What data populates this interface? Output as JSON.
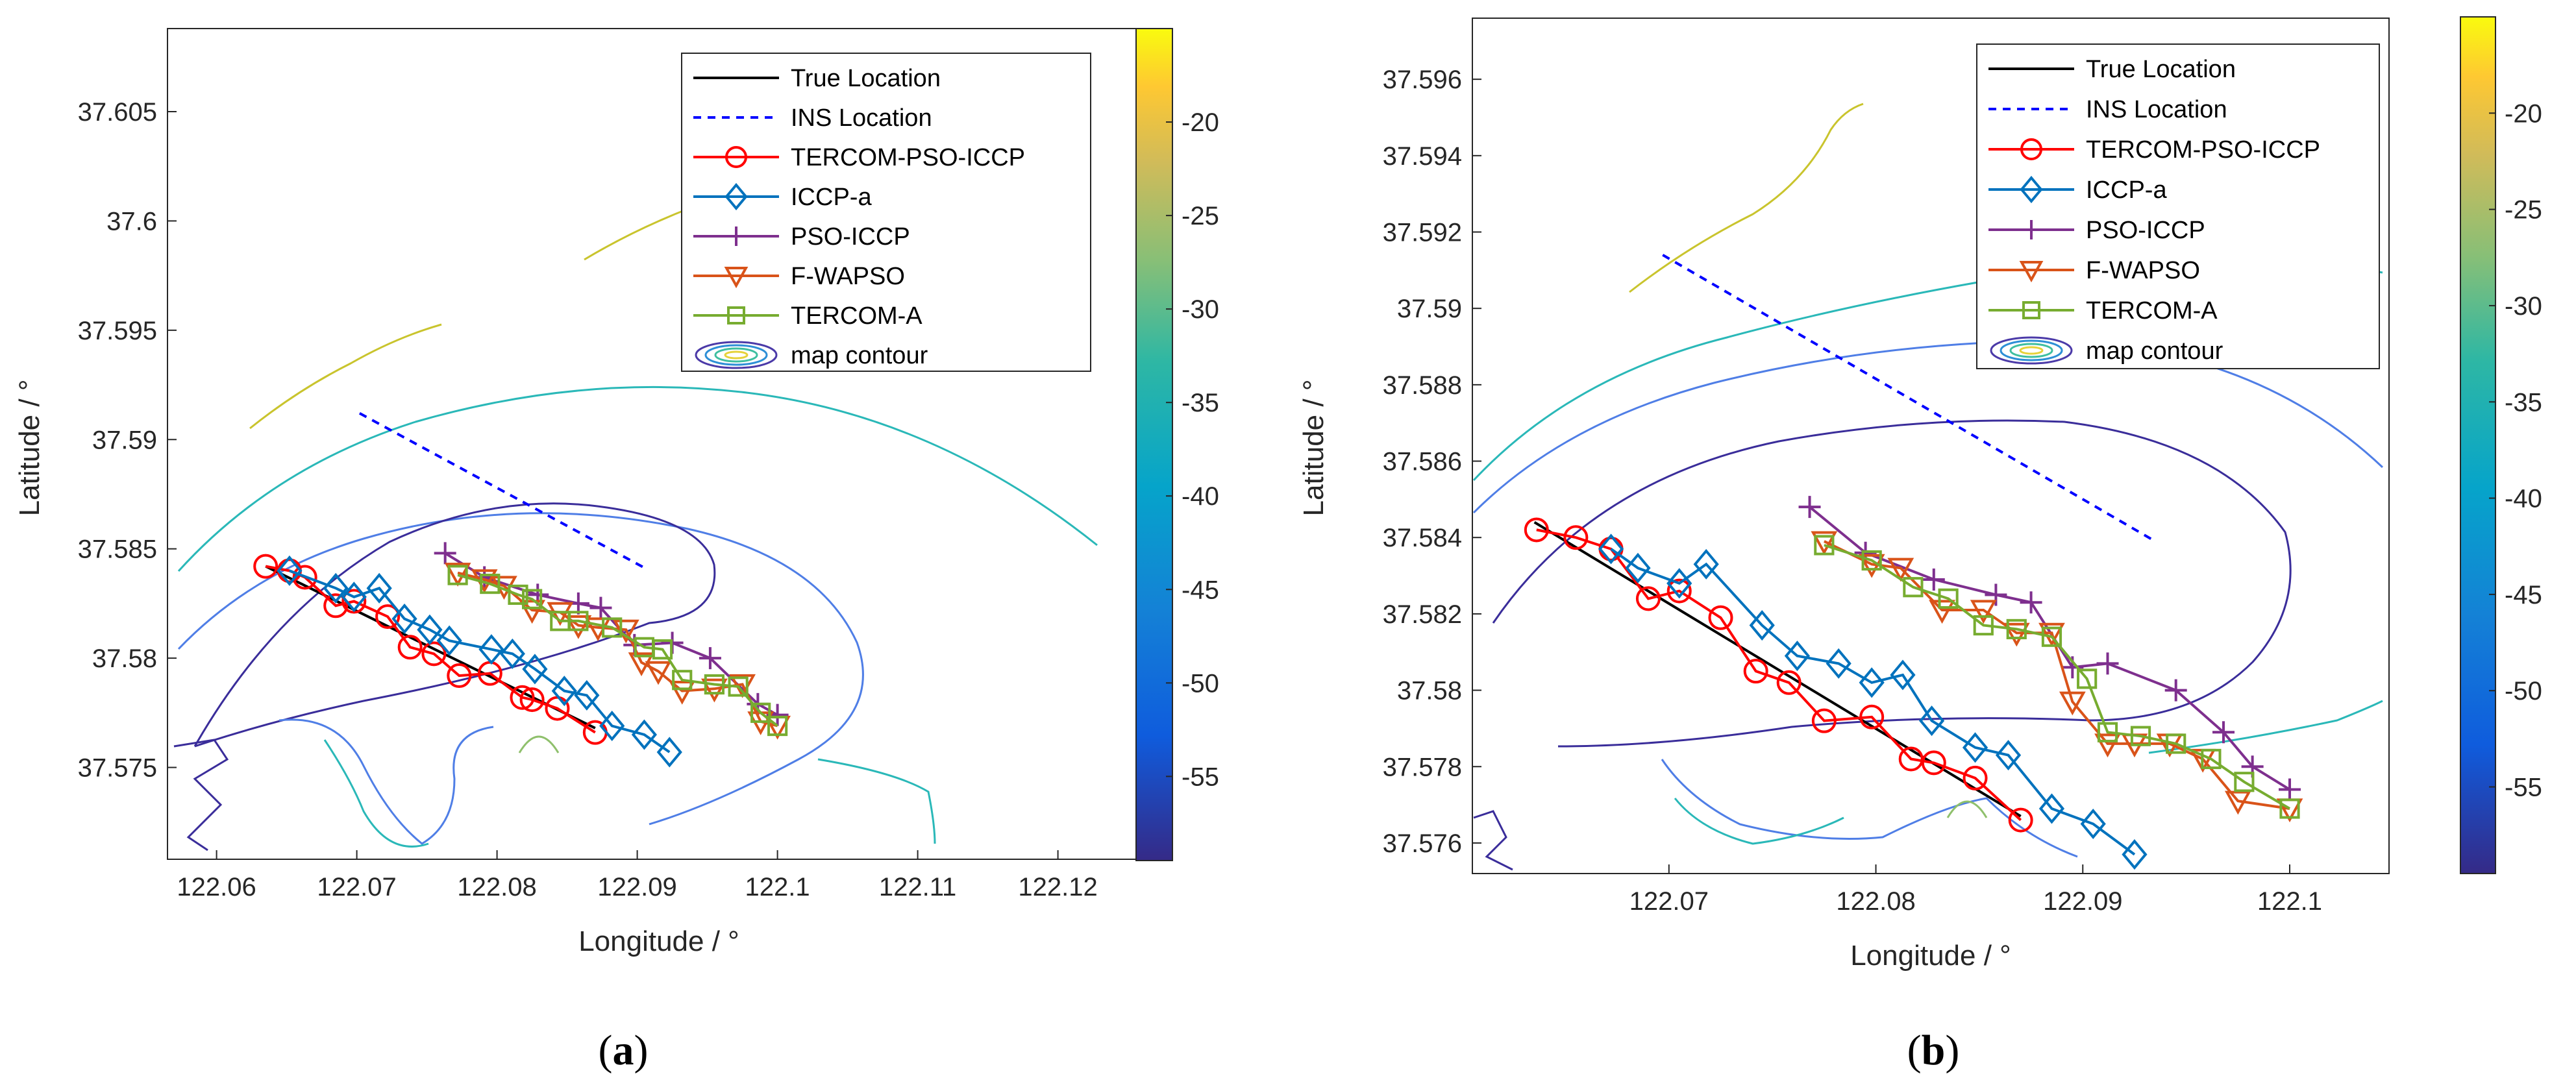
{
  "chart_data": [
    {
      "type": "line",
      "panel_label": "(a)",
      "panel_letter": "a",
      "xlabel": "Longitude / °",
      "ylabel": "Latitude / °",
      "xlim": [
        122.0565,
        122.1265
      ],
      "ylim": [
        37.5708,
        37.6088
      ],
      "xticks": [
        122.06,
        122.07,
        122.08,
        122.09,
        122.1,
        122.11,
        122.12
      ],
      "xtick_labels": [
        "122.06",
        "122.07",
        "122.08",
        "122.09",
        "122.1",
        "122.11",
        "122.12"
      ],
      "yticks": [
        37.575,
        37.58,
        37.585,
        37.59,
        37.595,
        37.6,
        37.605
      ],
      "ytick_labels": [
        "37.575",
        "37.58",
        "37.585",
        "37.59",
        "37.595",
        "37.6",
        "37.605"
      ],
      "colorbar": {
        "range": [
          -59.5,
          -15
        ],
        "ticks": [
          -20,
          -25,
          -30,
          -35,
          -40,
          -45,
          -50,
          -55
        ],
        "tick_labels": [
          "-20",
          "-25",
          "-30",
          "-35",
          "-40",
          "-45",
          "-50",
          "-55"
        ]
      },
      "legend": [
        "True Location",
        "INS Location",
        "TERCOM-PSO-ICCP",
        "ICCP-a",
        "PSO-ICCP",
        "F-WAPSO",
        "TERCOM-A",
        "map contour"
      ],
      "series": [
        {
          "name": "True Location",
          "color": "#000000",
          "dash": "",
          "marker": "none",
          "x": [
            122.0635,
            122.087
          ],
          "y": [
            37.5842,
            37.5768
          ]
        },
        {
          "name": "INS Location",
          "color": "#0000ff",
          "dash": "12,10",
          "marker": "none",
          "x": [
            122.0702,
            122.0906
          ],
          "y": [
            37.5912,
            37.5841
          ]
        },
        {
          "name": "TERCOM-PSO-ICCP",
          "color": "#ff0000",
          "dash": "",
          "marker": "circle",
          "x": [
            122.0635,
            122.0652,
            122.0663,
            122.0685,
            122.0698,
            122.0722,
            122.0738,
            122.0755,
            122.0773,
            122.0795,
            122.0818,
            122.0825,
            122.0843,
            122.087
          ],
          "y": [
            37.5842,
            37.584,
            37.5837,
            37.5824,
            37.5826,
            37.5819,
            37.5805,
            37.5802,
            37.5792,
            37.5793,
            37.5782,
            37.5781,
            37.5777,
            37.5766
          ]
        },
        {
          "name": "ICCP-a",
          "color": "#0072bd",
          "dash": "",
          "marker": "diamond",
          "x": [
            122.0652,
            122.0685,
            122.0698,
            122.0716,
            122.0734,
            122.0752,
            122.0766,
            122.0796,
            122.0811,
            122.0827,
            122.0848,
            122.0864,
            122.0882,
            122.0905,
            122.0923
          ],
          "y": [
            37.584,
            37.5832,
            37.5828,
            37.5832,
            37.5818,
            37.5813,
            37.5808,
            37.5804,
            37.5802,
            37.5795,
            37.5785,
            37.5783,
            37.5769,
            37.5765,
            37.5757
          ]
        },
        {
          "name": "PSO-ICCP",
          "color": "#7e2f8e",
          "dash": "",
          "marker": "plus",
          "x": [
            122.0763,
            122.0791,
            122.0829,
            122.0858,
            122.0874,
            122.0898,
            122.0925,
            122.0952,
            122.0986,
            122.1
          ],
          "y": [
            37.5848,
            37.5837,
            37.5829,
            37.5825,
            37.5823,
            37.5806,
            37.5807,
            37.58,
            37.5779,
            37.5774
          ]
        },
        {
          "name": "F-WAPSO",
          "color": "#d95319",
          "dash": "",
          "marker": "triangle-down",
          "x": [
            122.0772,
            122.0791,
            122.0805,
            122.0825,
            122.0845,
            122.0858,
            122.0872,
            122.0892,
            122.0903,
            122.0915,
            122.0932,
            122.0955,
            122.0975,
            122.0988,
            122.1
          ],
          "y": [
            37.5839,
            37.5836,
            37.5833,
            37.5822,
            37.5821,
            37.5815,
            37.5814,
            37.5813,
            37.5798,
            37.5794,
            37.5785,
            37.5786,
            37.5788,
            37.5771,
            37.5769
          ]
        },
        {
          "name": "TERCOM-A",
          "color": "#77ac30",
          "dash": "",
          "marker": "square",
          "x": [
            122.0772,
            122.0795,
            122.0815,
            122.0825,
            122.0845,
            122.0858,
            122.0882,
            122.0905,
            122.0918,
            122.0932,
            122.0955,
            122.0972,
            122.0988,
            122.1
          ],
          "y": [
            37.5838,
            37.5834,
            37.5829,
            37.5827,
            37.5817,
            37.5817,
            37.5814,
            37.5805,
            37.5804,
            37.579,
            37.5788,
            37.5787,
            37.5775,
            37.5769
          ]
        }
      ]
    },
    {
      "type": "line",
      "panel_label": "(b)",
      "panel_letter": "b",
      "xlabel": "Longitude / °",
      "ylabel": "Latitude / °",
      "xlim": [
        122.0605,
        122.1048
      ],
      "ylim": [
        37.5752,
        37.5976
      ],
      "xticks": [
        122.07,
        122.08,
        122.09,
        122.1
      ],
      "xtick_labels": [
        "122.07",
        "122.08",
        "122.09",
        "122.1"
      ],
      "yticks": [
        37.576,
        37.578,
        37.58,
        37.582,
        37.584,
        37.586,
        37.588,
        37.59,
        37.592,
        37.594,
        37.596
      ],
      "ytick_labels": [
        "37.576",
        "37.578",
        "37.58",
        "37.582",
        "37.584",
        "37.586",
        "37.588",
        "37.59",
        "37.592",
        "37.594",
        "37.596"
      ],
      "colorbar": {
        "range": [
          -59.5,
          -15
        ],
        "ticks": [
          -20,
          -25,
          -30,
          -35,
          -40,
          -45,
          -50,
          -55
        ],
        "tick_labels": [
          "-20",
          "-25",
          "-30",
          "-35",
          "-40",
          "-45",
          "-50",
          "-55"
        ]
      },
      "legend": [
        "True Location",
        "INS Location",
        "TERCOM-PSO-ICCP",
        "ICCP-a",
        "PSO-ICCP",
        "F-WAPSO",
        "TERCOM-A",
        "map contour"
      ],
      "series": [
        {
          "name": "True Location",
          "color": "#000000",
          "dash": "",
          "marker": "none",
          "x": [
            122.0635,
            122.087
          ],
          "y": [
            37.5844,
            37.5767
          ]
        },
        {
          "name": "INS Location",
          "color": "#0000ff",
          "dash": "12,10",
          "marker": "none",
          "x": [
            122.0697,
            122.0935
          ],
          "y": [
            37.5914,
            37.5839
          ]
        },
        {
          "name": "TERCOM-PSO-ICCP",
          "color": "#ff0000",
          "dash": "",
          "marker": "circle",
          "x": [
            122.0636,
            122.0655,
            122.0672,
            122.069,
            122.0705,
            122.0725,
            122.0742,
            122.0758,
            122.0775,
            122.0798,
            122.0817,
            122.0828,
            122.0848,
            122.087
          ],
          "y": [
            37.5842,
            37.584,
            37.5837,
            37.5824,
            37.5826,
            37.5819,
            37.5805,
            37.5802,
            37.5792,
            37.5793,
            37.5782,
            37.5781,
            37.5777,
            37.5766
          ]
        },
        {
          "name": "ICCP-a",
          "color": "#0072bd",
          "dash": "",
          "marker": "diamond",
          "x": [
            122.0672,
            122.0685,
            122.0705,
            122.0718,
            122.0745,
            122.0762,
            122.0782,
            122.0798,
            122.0813,
            122.0827,
            122.0848,
            122.0864,
            122.0885,
            122.0905,
            122.0925
          ],
          "y": [
            37.5837,
            37.5832,
            37.5828,
            37.5833,
            37.5817,
            37.5809,
            37.5807,
            37.5802,
            37.5804,
            37.5792,
            37.5785,
            37.5783,
            37.5769,
            37.5765,
            37.5757
          ]
        },
        {
          "name": "PSO-ICCP",
          "color": "#7e2f8e",
          "dash": "",
          "marker": "plus",
          "x": [
            122.0768,
            122.0795,
            122.0828,
            122.0858,
            122.0875,
            122.0895,
            122.0912,
            122.0945,
            122.0968,
            122.0982,
            122.1
          ],
          "y": [
            37.5848,
            37.5836,
            37.5829,
            37.5825,
            37.5823,
            37.5806,
            37.5807,
            37.58,
            37.5789,
            37.578,
            37.5774
          ]
        },
        {
          "name": "F-WAPSO",
          "color": "#d95319",
          "dash": "",
          "marker": "triangle-down",
          "x": [
            122.0775,
            122.0798,
            122.0812,
            122.0832,
            122.0852,
            122.0868,
            122.0885,
            122.0895,
            122.0912,
            122.0925,
            122.0942,
            122.0958,
            122.0975,
            122.1
          ],
          "y": [
            37.5839,
            37.5833,
            37.5832,
            37.5821,
            37.5821,
            37.5815,
            37.5815,
            37.5797,
            37.5786,
            37.5786,
            37.5786,
            37.5782,
            37.5771,
            37.5769
          ]
        },
        {
          "name": "TERCOM-A",
          "color": "#77ac30",
          "dash": "",
          "marker": "square",
          "x": [
            122.0775,
            122.0798,
            122.0818,
            122.0835,
            122.0852,
            122.0868,
            122.0885,
            122.0902,
            122.0912,
            122.0928,
            122.0945,
            122.0962,
            122.0978,
            122.1
          ],
          "y": [
            37.5838,
            37.5834,
            37.5827,
            37.5824,
            37.5817,
            37.5816,
            37.5814,
            37.5803,
            37.5789,
            37.5788,
            37.5786,
            37.5782,
            37.5776,
            37.5769
          ]
        }
      ]
    }
  ]
}
